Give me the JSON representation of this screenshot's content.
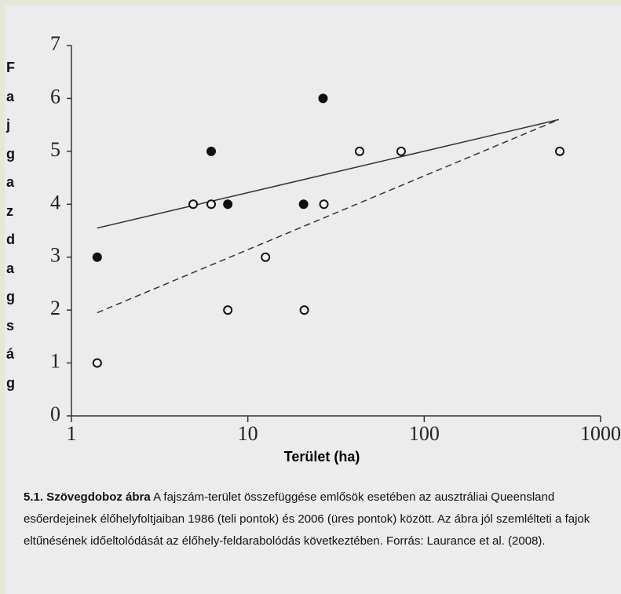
{
  "chart_data": {
    "type": "scatter",
    "xlabel": "Terület (ha)",
    "ylabel": "Fajgazdagság",
    "xscale": "log",
    "xlim": [
      1,
      1000
    ],
    "xticks": [
      1,
      10,
      100,
      1000
    ],
    "ylim": [
      0,
      7
    ],
    "yticks": [
      0,
      1,
      2,
      3,
      4,
      5,
      6,
      7
    ],
    "series": [
      {
        "marker": "filled",
        "color": "#111111",
        "x": [
          1.4,
          6.2,
          7.7,
          20.7,
          26.7
        ],
        "values": [
          3,
          5,
          4,
          4,
          6
        ]
      },
      {
        "marker": "open",
        "color": "#111111",
        "x": [
          1.4,
          4.9,
          6.2,
          7.7,
          12.6,
          20.9,
          27,
          43,
          74,
          587
        ],
        "values": [
          1,
          4,
          4,
          2,
          3,
          2,
          4,
          5,
          5,
          5
        ]
      }
    ],
    "trend_lines": [
      {
        "style": "solid",
        "color": "#333333",
        "x": [
          1.4,
          580
        ],
        "values": [
          3.55,
          5.6
        ]
      },
      {
        "style": "dashed",
        "color": "#333333",
        "x": [
          1.4,
          580
        ],
        "values": [
          1.95,
          5.6
        ]
      }
    ]
  },
  "caption": {
    "label": "5.1. Szövegdoboz ábra",
    "text": "A fajszám-terület összefüggése emlősök esetében az ausztráliai Queensland esőerdejeinek élőhelyfoltjaiban 1986 (teli pontok) és 2006 (üres pontok) között. Az ábra jól szemlélteti a fajok eltűnésének időeltolódását az élőhely-feldarabolódás következtében. Forrás: Laurance et al. (2008)."
  }
}
